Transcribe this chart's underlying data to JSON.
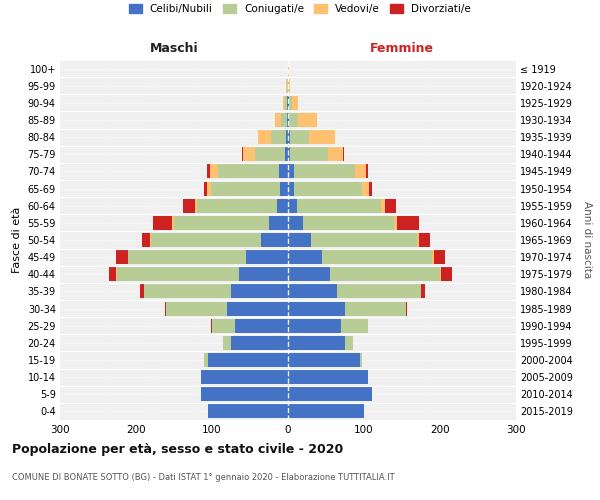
{
  "age_groups": [
    "0-4",
    "5-9",
    "10-14",
    "15-19",
    "20-24",
    "25-29",
    "30-34",
    "35-39",
    "40-44",
    "45-49",
    "50-54",
    "55-59",
    "60-64",
    "65-69",
    "70-74",
    "75-79",
    "80-84",
    "85-89",
    "90-94",
    "95-99",
    "100+"
  ],
  "birth_years": [
    "2015-2019",
    "2010-2014",
    "2005-2009",
    "2000-2004",
    "1995-1999",
    "1990-1994",
    "1985-1989",
    "1980-1984",
    "1975-1979",
    "1970-1974",
    "1965-1969",
    "1960-1964",
    "1955-1959",
    "1950-1954",
    "1945-1949",
    "1940-1944",
    "1935-1939",
    "1930-1934",
    "1925-1929",
    "1920-1924",
    "≤ 1919"
  ],
  "colors": {
    "celibi": "#4472c4",
    "coniugati": "#b8cc96",
    "vedovi": "#ffc06f",
    "divorziati": "#cc2222"
  },
  "males": {
    "celibi": [
      105,
      115,
      115,
      105,
      75,
      70,
      80,
      75,
      65,
      55,
      35,
      25,
      15,
      11,
      12,
      4,
      2,
      1,
      1,
      0,
      0
    ],
    "coniugati": [
      0,
      0,
      0,
      5,
      10,
      30,
      80,
      115,
      160,
      155,
      145,
      125,
      105,
      90,
      80,
      40,
      20,
      8,
      3,
      1,
      0
    ],
    "vedovi": [
      0,
      0,
      0,
      0,
      0,
      0,
      0,
      0,
      1,
      1,
      2,
      2,
      3,
      5,
      10,
      15,
      18,
      8,
      3,
      1,
      0
    ],
    "divorziati": [
      0,
      0,
      0,
      0,
      0,
      1,
      2,
      5,
      10,
      15,
      10,
      25,
      15,
      5,
      5,
      2,
      0,
      0,
      0,
      0,
      0
    ]
  },
  "females": {
    "celibi": [
      100,
      110,
      105,
      95,
      75,
      70,
      75,
      65,
      55,
      45,
      30,
      20,
      12,
      8,
      8,
      3,
      2,
      1,
      1,
      0,
      0
    ],
    "coniugati": [
      0,
      0,
      0,
      3,
      10,
      35,
      80,
      110,
      145,
      145,
      140,
      120,
      110,
      90,
      80,
      50,
      25,
      12,
      4,
      1,
      0
    ],
    "vedovi": [
      0,
      0,
      0,
      0,
      0,
      0,
      0,
      0,
      1,
      2,
      2,
      3,
      5,
      8,
      15,
      20,
      35,
      25,
      8,
      2,
      1
    ],
    "divorziati": [
      0,
      0,
      0,
      0,
      0,
      0,
      2,
      5,
      15,
      15,
      15,
      30,
      15,
      5,
      2,
      1,
      0,
      0,
      0,
      0,
      0
    ]
  },
  "title": "Popolazione per età, sesso e stato civile - 2020",
  "subtitle": "COMUNE DI BONATE SOTTO (BG) - Dati ISTAT 1° gennaio 2020 - Elaborazione TUTTITALIA.IT",
  "xlabel_left": "Maschi",
  "xlabel_right": "Femmine",
  "ylabel_left": "Fasce di età",
  "ylabel_right": "Anni di nascita",
  "xlim": 300,
  "legend_labels": [
    "Celibi/Nubili",
    "Coniugati/e",
    "Vedovi/e",
    "Divorziati/e"
  ],
  "background_color": "#ffffff",
  "plot_bg_color": "#f0f0f0",
  "grid_color": "#cccccc"
}
